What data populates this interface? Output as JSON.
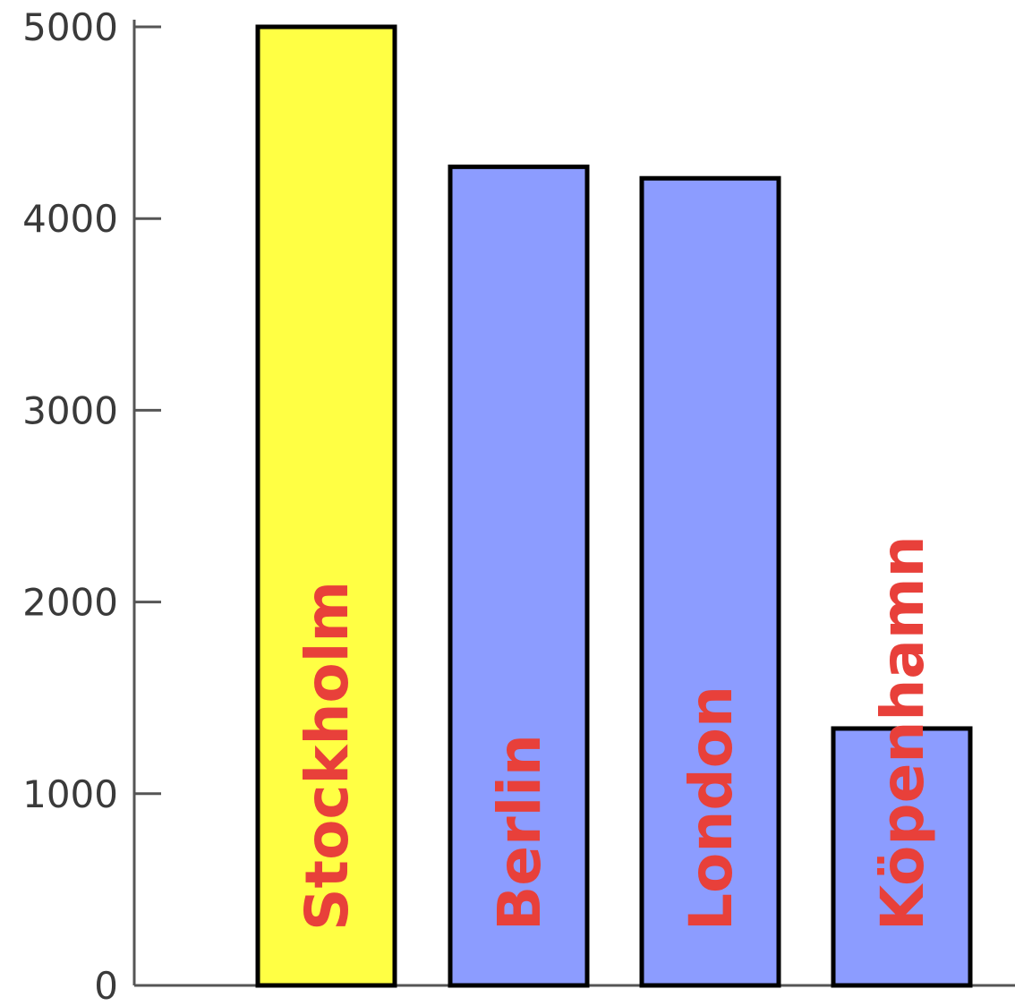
{
  "chart_data": {
    "type": "bar",
    "title": "",
    "xlabel": "",
    "ylabel": "",
    "ylim": [
      0,
      5000
    ],
    "yticks": [
      0,
      1000,
      2000,
      3000,
      4000,
      5000
    ],
    "tick_labels": [
      "0",
      "1000",
      "2000",
      "3000",
      "4000",
      "5000"
    ],
    "categories": [
      "Stockholm",
      "Berlin",
      "London",
      "Köpenhamn"
    ],
    "values": [
      5000,
      4270,
      4210,
      1340
    ],
    "bar_colors": [
      "#ffff44",
      "#8c9cff",
      "#8c9cff",
      "#8c9cff"
    ],
    "bar_outline_color": "#000000",
    "label_color": "#e8403a",
    "axis_color": "#555555",
    "grid": false,
    "legend": "none"
  }
}
